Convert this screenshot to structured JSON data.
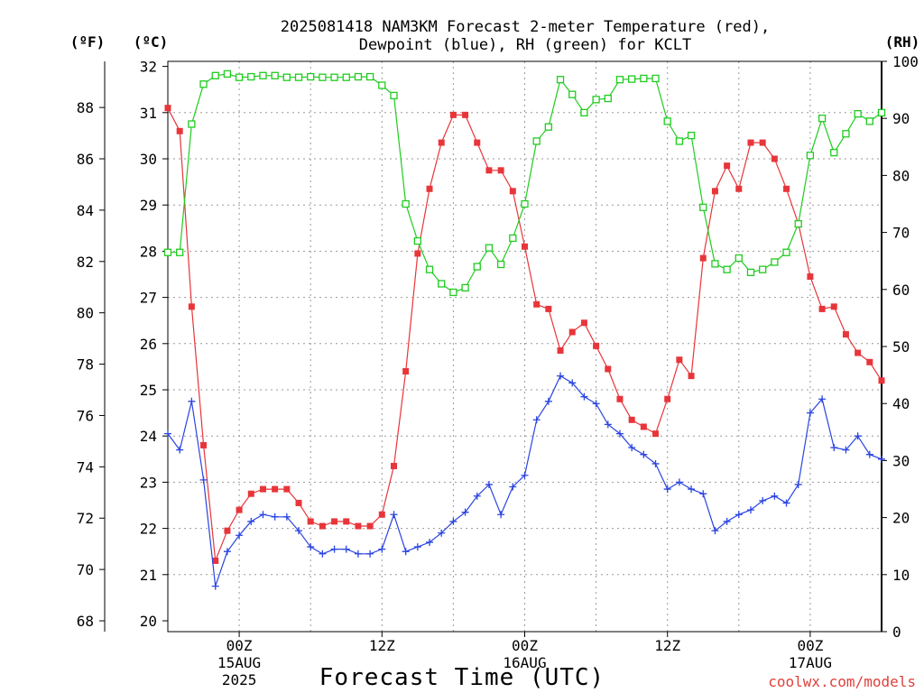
{
  "title": {
    "line1": "2025081418 NAM3KM Forecast 2-meter Temperature (red),",
    "line2": "Dewpoint (blue), RH (green) for KCLT"
  },
  "axes": {
    "fahrenheit_label": "(ºF)",
    "celsius_label": "(ºC)",
    "rh_label": "(RH)",
    "x_title": "Forecast Time (UTC)",
    "fahrenheit_ticks": [
      "68",
      "70",
      "72",
      "74",
      "76",
      "78",
      "80",
      "82",
      "84",
      "86",
      "88"
    ],
    "celsius_ticks": [
      "20",
      "21",
      "22",
      "23",
      "24",
      "25",
      "26",
      "27",
      "28",
      "29",
      "30",
      "31",
      "32"
    ],
    "rh_ticks": [
      "0",
      "10",
      "20",
      "30",
      "40",
      "50",
      "60",
      "70",
      "80",
      "90",
      "100"
    ],
    "x_ticks": [
      {
        "h": 6,
        "l1": "00Z",
        "l2": "15AUG",
        "l3": "2025"
      },
      {
        "h": 18,
        "l1": "12Z",
        "l2": "",
        "l3": ""
      },
      {
        "h": 30,
        "l1": "00Z",
        "l2": "16AUG",
        "l3": ""
      },
      {
        "h": 42,
        "l1": "12Z",
        "l2": "",
        "l3": ""
      },
      {
        "h": 54,
        "l1": "00Z",
        "l2": "17AUG",
        "l3": ""
      }
    ]
  },
  "credit": "coolwx.com/models",
  "colors": {
    "temperature": "#e8353a",
    "dewpoint": "#2a44e0",
    "rh": "#1fcc1f",
    "grid": "#9a9a9a"
  },
  "chart_data": {
    "type": "line",
    "x_unit": "hours from 2025-08-14 18Z",
    "x": [
      0,
      1,
      2,
      3,
      4,
      5,
      6,
      7,
      8,
      9,
      10,
      11,
      12,
      13,
      14,
      15,
      16,
      17,
      18,
      19,
      20,
      21,
      22,
      23,
      24,
      25,
      26,
      27,
      28,
      29,
      30,
      31,
      32,
      33,
      34,
      35,
      36,
      37,
      38,
      39,
      40,
      41,
      42,
      43,
      44,
      45,
      46,
      47,
      48,
      49,
      50,
      51,
      52,
      53,
      54,
      55,
      56,
      57,
      58,
      59,
      60
    ],
    "ylim_celsius": [
      20,
      32
    ],
    "ylim_rh": [
      0,
      100
    ],
    "grid": true,
    "series": [
      {
        "name": "Temperature",
        "axis": "celsius",
        "marker": "filled-square",
        "values": [
          31.1,
          30.6,
          26.8,
          23.8,
          21.3,
          21.95,
          22.4,
          22.75,
          22.85,
          22.85,
          22.85,
          22.55,
          22.15,
          22.05,
          22.15,
          22.15,
          22.05,
          22.05,
          22.3,
          23.35,
          25.4,
          27.95,
          29.35,
          30.35,
          30.95,
          30.95,
          30.35,
          29.75,
          29.75,
          29.3,
          28.1,
          26.85,
          26.75,
          25.85,
          26.25,
          26.45,
          25.95,
          25.45,
          24.8,
          24.35,
          24.2,
          24.05,
          24.8,
          25.65,
          25.3,
          27.85,
          29.3,
          29.85,
          29.35,
          30.35,
          30.35,
          30.0,
          29.35,
          28.6,
          27.45,
          26.75,
          26.8,
          26.2,
          25.8,
          25.6,
          25.2
        ]
      },
      {
        "name": "Dewpoint",
        "axis": "celsius",
        "marker": "plus",
        "values": [
          24.05,
          23.7,
          24.75,
          23.05,
          20.75,
          21.5,
          21.85,
          22.15,
          22.3,
          22.25,
          22.25,
          21.95,
          21.6,
          21.45,
          21.55,
          21.55,
          21.45,
          21.45,
          21.55,
          22.3,
          21.5,
          21.6,
          21.7,
          21.9,
          22.15,
          22.35,
          22.7,
          22.95,
          22.3,
          22.9,
          23.15,
          24.35,
          24.75,
          25.3,
          25.15,
          24.85,
          24.7,
          24.25,
          24.05,
          23.75,
          23.6,
          23.4,
          22.85,
          23.0,
          22.85,
          22.75,
          21.95,
          22.15,
          22.3,
          22.4,
          22.6,
          22.7,
          22.55,
          22.95,
          24.5,
          24.8,
          23.75,
          23.7,
          24.0,
          23.6,
          23.5
        ]
      },
      {
        "name": "RH",
        "axis": "rh",
        "marker": "open-square",
        "values": [
          66.5,
          66.5,
          89.0,
          96.0,
          97.5,
          97.8,
          97.2,
          97.3,
          97.5,
          97.5,
          97.2,
          97.2,
          97.3,
          97.2,
          97.2,
          97.2,
          97.3,
          97.3,
          95.8,
          94.0,
          75.0,
          68.5,
          63.5,
          61.0,
          59.5,
          60.3,
          64.0,
          67.3,
          64.4,
          69.0,
          75.0,
          86.0,
          88.5,
          96.8,
          94.2,
          91.0,
          93.3,
          93.5,
          96.8,
          96.9,
          97.0,
          97.0,
          89.5,
          86.0,
          87.0,
          74.4,
          64.5,
          63.5,
          65.5,
          63.0,
          63.5,
          64.8,
          66.5,
          71.5,
          83.5,
          90.0,
          84.0,
          87.3,
          90.8,
          89.5,
          91.0
        ]
      }
    ]
  }
}
